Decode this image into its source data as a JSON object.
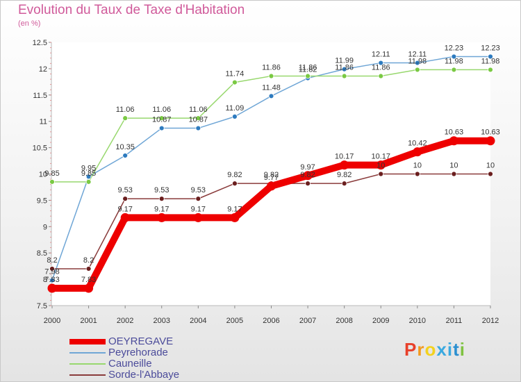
{
  "title": "Evolution du Taux de Taxe d'Habitation",
  "subtitle": "(en %)",
  "logo": {
    "text": "Proxiti",
    "colors": [
      "#e8402a",
      "#f39a1e",
      "#f3d21e",
      "#3aa9e0",
      "#3aa9e0",
      "#2c8fd0",
      "#7fc241"
    ]
  },
  "chart_data": {
    "type": "line",
    "x": [
      "2000",
      "2001",
      "2002",
      "2003",
      "2004",
      "2005",
      "2006",
      "2007",
      "2008",
      "2009",
      "2010",
      "2011",
      "2012"
    ],
    "ylim": [
      7.5,
      12.5
    ],
    "yticks": [
      "7.5",
      "8",
      "8.5",
      "9",
      "9.5",
      "10",
      "10.5",
      "11",
      "11.5",
      "12",
      "12.5"
    ],
    "grid": false,
    "legend": "bottom-left",
    "series": [
      {
        "name": "Peyrehorade",
        "color": "#6fa6d6",
        "dot": "#2e7bbf",
        "values": [
          7.98,
          9.95,
          10.35,
          10.87,
          10.87,
          11.09,
          11.48,
          11.82,
          11.99,
          12.11,
          12.11,
          12.23,
          12.23
        ],
        "labels": [
          "7.98",
          "9.95",
          "10.35",
          "10.87",
          "10.87",
          "11.09",
          "11.48",
          "11.82",
          "11.99",
          "12.11",
          "12.11",
          "12.23",
          "12.23"
        ]
      },
      {
        "name": "Cauneille",
        "color": "#98d86e",
        "dot": "#7ac943",
        "values": [
          9.85,
          9.85,
          11.06,
          11.06,
          11.06,
          11.74,
          11.86,
          11.86,
          11.86,
          11.86,
          11.98,
          11.98,
          11.98
        ],
        "labels": [
          "9.85",
          "9.85",
          "11.06",
          "11.06",
          "11.06",
          "11.74",
          "11.86",
          "11.86",
          "11.86",
          "11.86",
          "11.98",
          "11.98",
          "11.98"
        ]
      },
      {
        "name": "Sorde-l'Abbaye",
        "color": "#8a3b3b",
        "dot": "#6b1f1f",
        "values": [
          8.2,
          8.2,
          9.53,
          9.53,
          9.53,
          9.82,
          9.82,
          9.82,
          9.82,
          10,
          10,
          10,
          10
        ],
        "labels": [
          "8.2",
          "8.2",
          "9.53",
          "9.53",
          "9.53",
          "9.82",
          "9.82",
          "9.82",
          "9.82",
          "10",
          "10",
          "10",
          "10"
        ]
      },
      {
        "name": "OEYREGAVE",
        "color": "#ee0000",
        "dot": "#ee0000",
        "values": [
          7.83,
          7.83,
          9.17,
          9.17,
          9.17,
          9.17,
          9.77,
          9.97,
          10.17,
          10.17,
          10.42,
          10.63,
          10.63
        ],
        "labels": [
          "7.83",
          "7.83",
          "9.17",
          "9.17",
          "9.17",
          "9.17",
          "9.77",
          "9.97",
          "10.17",
          "10.17",
          "10.42",
          "10.63",
          "10.63"
        ]
      }
    ]
  },
  "legend": [
    {
      "label": "OEYREGAVE",
      "color": "#ee0000",
      "thick": true
    },
    {
      "label": "Peyrehorade",
      "color": "#6fa6d6",
      "thick": false
    },
    {
      "label": "Cauneille",
      "color": "#98d86e",
      "thick": false
    },
    {
      "label": "Sorde-l'Abbaye",
      "color": "#8a3b3b",
      "thick": false
    }
  ]
}
